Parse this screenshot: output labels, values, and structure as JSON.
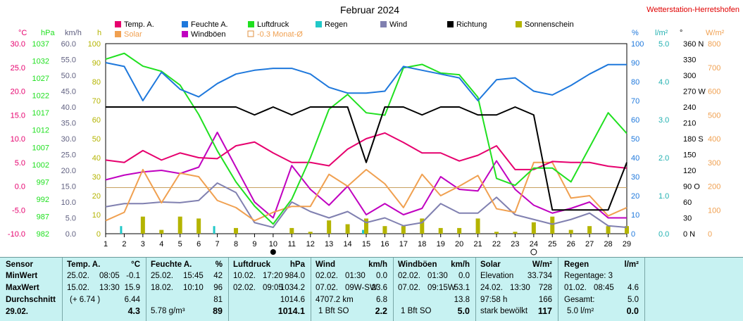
{
  "title": "Februar 2024",
  "station": "Wetterstation-Herretshofen",
  "colors": {
    "temp": "#e6006e",
    "humidity": "#1e78dc",
    "pressure": "#20e020",
    "rain": "#20c8c8",
    "wind": "#8080b0",
    "direction": "#000000",
    "sunshine": "#b4b400",
    "solar": "#f0a050",
    "gust": "#c000c0",
    "monthavg": "#e09040",
    "gridbg": "#ffffff"
  },
  "legend": [
    {
      "label": "Temp. A.",
      "key": "temp"
    },
    {
      "label": "Feuchte A.",
      "key": "humidity"
    },
    {
      "label": "Luftdruck",
      "key": "pressure"
    },
    {
      "label": "Regen",
      "key": "rain"
    },
    {
      "label": "Wind",
      "key": "wind"
    },
    {
      "label": "Richtung",
      "key": "direction"
    },
    {
      "label": "Sonnenschein",
      "key": "sunshine"
    },
    {
      "label": "Solar",
      "key": "solar"
    },
    {
      "label": "Windböen",
      "key": "gust"
    },
    {
      "label": "-0.3 Monat-Ø",
      "key": "monthavg"
    }
  ],
  "axis_units": {
    "temp": "°C",
    "pressure": "hPa",
    "wind": "km/h",
    "sunshine": "h",
    "humidity": "%",
    "rain": "l/m²",
    "direction": "°",
    "solar": "W/m²"
  },
  "chart_data": {
    "type": "line",
    "x": [
      1,
      2,
      3,
      4,
      5,
      6,
      7,
      8,
      9,
      10,
      11,
      12,
      13,
      14,
      15,
      16,
      17,
      18,
      19,
      20,
      21,
      22,
      23,
      24,
      25,
      26,
      27,
      28,
      29
    ],
    "axes": {
      "temp": {
        "range": [
          -10,
          30
        ],
        "ticks": [
          "30.0",
          "25.0",
          "20.0",
          "15.0",
          "10.0",
          "5.0",
          "0.0",
          "-5.0",
          "-10.0"
        ]
      },
      "pressure": {
        "range": [
          982,
          1037
        ],
        "ticks": [
          "1037",
          "1032",
          "1027",
          "1022",
          "1017",
          "1012",
          "1007",
          "1002",
          "997",
          "992",
          "987",
          "982"
        ]
      },
      "wind": {
        "range": [
          0,
          60
        ],
        "ticks": [
          "60.0",
          "55.0",
          "50.0",
          "45.0",
          "40.0",
          "35.0",
          "30.0",
          "25.0",
          "20.0",
          "15.0",
          "10.0",
          "5.0",
          "0.0"
        ]
      },
      "sunshine": {
        "range": [
          0,
          100
        ],
        "ticks": [
          "100",
          "90",
          "80",
          "70",
          "60",
          "50",
          "40",
          "30",
          "20",
          "10",
          "0"
        ]
      },
      "humidity": {
        "range": [
          0,
          100
        ],
        "ticks": [
          "100",
          "90",
          "80",
          "70",
          "60",
          "50",
          "40",
          "30",
          "20",
          "10",
          "0"
        ]
      },
      "rain": {
        "range": [
          0,
          5
        ],
        "ticks": [
          "5.0",
          "4.0",
          "3.0",
          "2.0",
          "1.0",
          "0.0"
        ]
      },
      "direction": {
        "range": [
          0,
          360
        ],
        "ticks": [
          "360 N",
          "330",
          "300",
          "270 W",
          "240",
          "210",
          "180 S",
          "150",
          "120",
          "90 O",
          "60",
          "30",
          "0 N"
        ]
      },
      "solar": {
        "range": [
          0,
          800
        ],
        "ticks": [
          "800",
          "700",
          "600",
          "500",
          "400",
          "300",
          "200",
          "100",
          "0"
        ]
      }
    },
    "series": [
      {
        "name": "Temp. A.",
        "key": "temp",
        "axis": "temp",
        "values": [
          5.5,
          5.0,
          7.5,
          5.5,
          7.0,
          6.0,
          5.8,
          8.5,
          9.3,
          7.0,
          5.0,
          5.0,
          4.3,
          7.8,
          10.0,
          11.2,
          9.2,
          7.0,
          7.0,
          5.3,
          6.5,
          8.5,
          3.5,
          3.5,
          5.2,
          5.0,
          5.0,
          4.2,
          3.8
        ]
      },
      {
        "name": "Feuchte A.",
        "key": "humidity",
        "axis": "humidity",
        "values": [
          90,
          88,
          70,
          85,
          76,
          72,
          79,
          84,
          86,
          87,
          87,
          84,
          77,
          74,
          74,
          75,
          88,
          86,
          84,
          82,
          70,
          81,
          82,
          75,
          73,
          78,
          84,
          89,
          89
        ]
      },
      {
        "name": "Luftdruck",
        "key": "pressure",
        "axis": "pressure",
        "values": [
          1032.5,
          1034.2,
          1030.5,
          1029,
          1025,
          1016.5,
          1006,
          997,
          990,
          984.8,
          992,
          1004,
          1018,
          1022.3,
          1017,
          1016.3,
          1030,
          1031,
          1028.5,
          1028,
          1021.5,
          998,
          996,
          1001,
          1001,
          997,
          1007,
          1017,
          1011
        ]
      },
      {
        "name": "Wind",
        "key": "wind",
        "axis": "wind",
        "values": [
          8.5,
          9.5,
          9.5,
          10.0,
          9.8,
          10.5,
          16.0,
          13.0,
          3.5,
          2.0,
          10.0,
          7.0,
          5.0,
          7.0,
          3.5,
          5.0,
          2.5,
          3.5,
          9.5,
          6.5,
          6.5,
          11.5,
          6.0,
          4.5,
          3.0,
          4.5,
          6.5,
          2.5,
          2.0
        ]
      },
      {
        "name": "Windböen",
        "key": "gust",
        "axis": "wind",
        "values": [
          17,
          18.5,
          19.5,
          20,
          19,
          21,
          32,
          21,
          10,
          5,
          21.5,
          14,
          9,
          15,
          6,
          9.5,
          6,
          8,
          18,
          14,
          13.5,
          23,
          14,
          9,
          6.5,
          8,
          10,
          5,
          5
        ]
      },
      {
        "name": "Solar",
        "key": "solar",
        "axis": "solar",
        "values": [
          55,
          90,
          270,
          130,
          255,
          240,
          140,
          110,
          55,
          90,
          115,
          115,
          250,
          200,
          270,
          210,
          110,
          250,
          160,
          200,
          245,
          105,
          90,
          300,
          300,
          150,
          160,
          75,
          110
        ]
      },
      {
        "name": "Richtung",
        "key": "direction",
        "axis": "direction",
        "values": [
          240,
          240,
          240,
          240,
          240,
          240,
          240,
          240,
          225,
          240,
          225,
          240,
          240,
          240,
          135,
          240,
          240,
          225,
          240,
          240,
          225,
          225,
          240,
          225,
          45,
          45,
          45,
          45,
          135
        ]
      },
      {
        "name": "Sonnenschein",
        "key": "sunshine",
        "axis": "sunshine",
        "values": [
          0,
          0,
          9,
          2,
          9,
          8,
          0,
          3,
          0,
          0,
          3,
          1,
          7,
          5,
          8,
          4,
          4,
          8,
          3,
          3,
          8,
          1,
          1,
          6,
          9,
          2,
          4,
          4,
          4
        ]
      },
      {
        "name": "Regen",
        "key": "rain",
        "axis": "rain",
        "values": [
          0,
          0.2,
          0,
          0,
          0,
          0,
          0.2,
          0,
          0,
          0,
          0,
          0,
          0,
          0,
          0.1,
          0,
          0,
          0,
          0,
          0,
          0,
          0,
          0,
          0,
          0,
          0,
          0,
          0,
          0
        ]
      }
    ],
    "reference_line": {
      "label": "-0.3 Monat-Ø",
      "axis": "temp",
      "value": -0.3
    }
  },
  "summary": {
    "rows": [
      "MinWert",
      "MaxWert",
      "Durchschnitt",
      "29.02."
    ],
    "sensor_header": "Sensor",
    "temp": {
      "header": "Temp. A.",
      "unit": "°C",
      "r1a": "25.02.",
      "r1b": "08:05",
      "r1v": "-0.1",
      "r2a": "15.02.",
      "r2b": "13:30",
      "r2v": "15.9",
      "r3a": "(+ 6.74 )",
      "r3v": "6.44",
      "r4v": "4.3"
    },
    "humidity": {
      "header": "Feuchte A.",
      "unit": "%",
      "r1a": "25.02.",
      "r1b": "15:45",
      "r1v": "42",
      "r2a": "18.02.",
      "r2b": "10:10",
      "r2v": "96",
      "r3v": "81",
      "r4a": "5.78 g/m³",
      "r4v": "89"
    },
    "pressure": {
      "header": "Luftdruck",
      "unit": "hPa",
      "r1a": "10.02.",
      "r1b": "17:20",
      "r1v": "984.0",
      "r2a": "02.02.",
      "r2b": "09:05",
      "r2v": "1034.2",
      "r3v": "1014.6",
      "r4v": "1014.1"
    },
    "wind": {
      "header": "Wind",
      "unit": "km/h",
      "r1a": "02.02.",
      "r1b": "01:30",
      "r1v": "0.0",
      "r2a": "07.02.",
      "r2b": "09W-SW",
      "r2v": "23.6",
      "r3a": "4707.2 km",
      "r3v": "6.8",
      "r4a": "1 Bft SO",
      "r4v": "2.2"
    },
    "gust": {
      "header": "Windböen",
      "unit": "km/h",
      "r1a": "02.02.",
      "r1b": "01:30",
      "r1v": "0.0",
      "r2a": "07.02.",
      "r2b": "09:15W",
      "r2v": "53.1",
      "r3v": "13.8",
      "r4a": "1 Bft SO",
      "r4v": "5.0"
    },
    "solar": {
      "header": "Solar",
      "unit": "W/m²",
      "r1a": "Elevation",
      "r1v": "33.734",
      "r2a": "24.02.",
      "r2b": "13:30",
      "r2v": "728",
      "r3a": "97:58 h",
      "r3v": "166",
      "r4a": "stark bewölkt",
      "r4v": "117"
    },
    "rain": {
      "header": "Regen",
      "unit": "l/m²",
      "r1a": "Regentage: 3",
      "r2a": "01.02.",
      "r2b": "08:45",
      "r2v": "4.6",
      "r3a": "Gesamt:",
      "r3v": "5.0",
      "r4a": "5.0 l/m²",
      "r4v": "0.0"
    }
  }
}
